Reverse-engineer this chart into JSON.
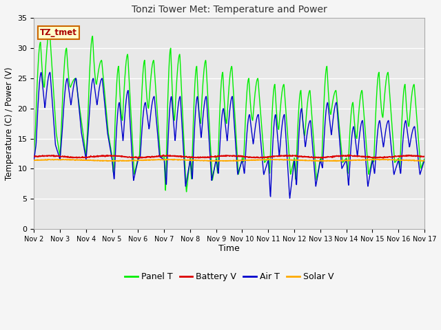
{
  "title": "Tonzi Tower Met: Temperature and Power",
  "xlabel": "Time",
  "ylabel": "Temperature (C) / Power (V)",
  "ylim": [
    0,
    35
  ],
  "yticks": [
    0,
    5,
    10,
    15,
    20,
    25,
    30,
    35
  ],
  "annotation": "TZ_tmet",
  "legend_labels": [
    "Panel T",
    "Battery V",
    "Air T",
    "Solar V"
  ],
  "panel_color": "#00ee00",
  "battery_color": "#dd0000",
  "air_color": "#0000cc",
  "solar_color": "#ffaa00",
  "bg_color": "#e8e8e8",
  "fig_bg_color": "#f5f5f5",
  "grid_color": "#ffffff",
  "xtick_labels": [
    "Nov 2",
    "Nov 3",
    "Nov 4",
    "Nov 5",
    "Nov 6",
    "Nov 7",
    "Nov 8",
    "Nov 9",
    "Nov 10",
    "Nov 11",
    "Nov 12",
    "Nov 13",
    "Nov 14",
    "Nov 15",
    "Nov 16",
    "Nov 17"
  ],
  "panel_day_peaks1": [
    31,
    30,
    32,
    27,
    28,
    30,
    27,
    26,
    25,
    24,
    23,
    27,
    21,
    26,
    24
  ],
  "panel_day_peaks2": [
    33,
    25,
    28,
    29,
    28,
    29,
    28,
    27,
    25,
    24,
    23,
    23,
    23,
    26,
    24
  ],
  "panel_day_troughs": [
    16,
    17,
    16,
    9,
    12,
    6,
    8,
    9,
    11,
    9,
    8,
    11,
    9,
    11,
    10
  ],
  "air_day_peaks1": [
    26,
    25,
    25,
    21,
    21,
    22,
    22,
    20,
    19,
    19,
    20,
    21,
    17,
    18,
    18
  ],
  "air_day_peaks2": [
    26,
    25,
    25,
    23,
    22,
    22,
    22,
    22,
    19,
    19,
    18,
    21,
    18,
    18,
    17
  ],
  "air_day_troughs": [
    14,
    16,
    16,
    8,
    12,
    7,
    8,
    9,
    9,
    5,
    7,
    10,
    7,
    9,
    9
  ],
  "battery_base": 12.0,
  "solar_base": 11.4
}
